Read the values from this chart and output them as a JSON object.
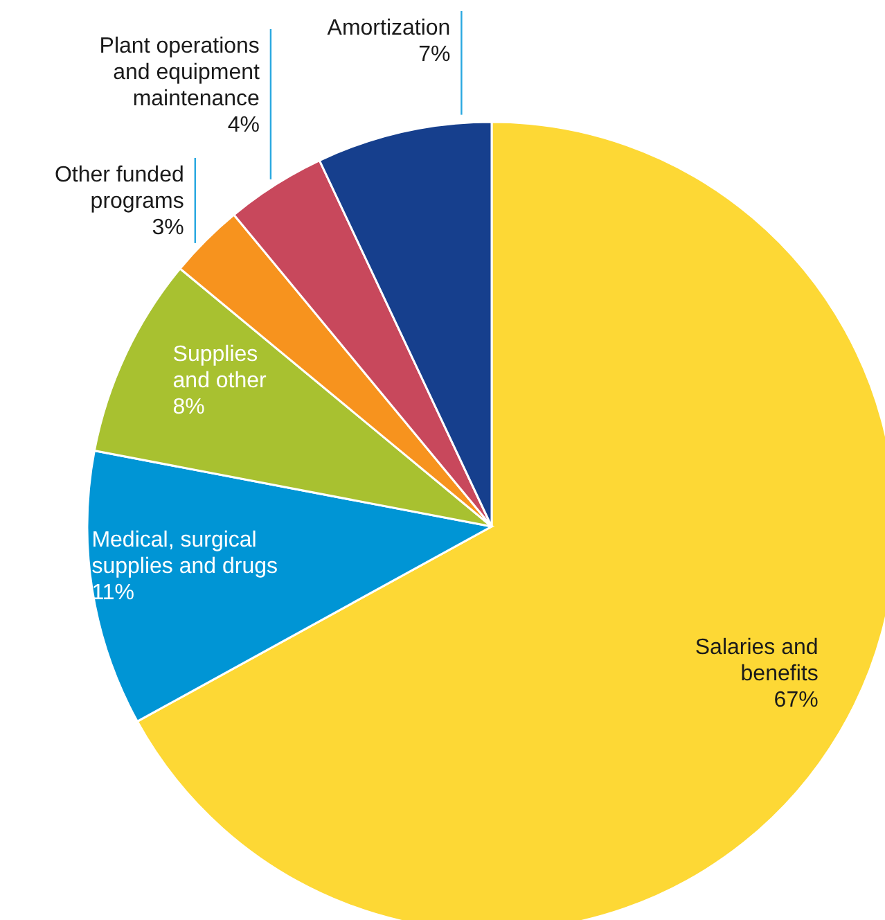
{
  "chart_data": {
    "type": "pie",
    "categories": [
      "Salaries and benefits",
      "Medical, surgical supplies and drugs",
      "Supplies and other",
      "Other funded programs",
      "Plant operations and equipment maintenance",
      "Amortization"
    ],
    "values": [
      67,
      11,
      8,
      3,
      4,
      7
    ],
    "value_labels": [
      "67%",
      "11%",
      "8%",
      "3%",
      "4%",
      "7%"
    ],
    "colors": [
      "#fdd835",
      "#0095d5",
      "#a8c130",
      "#f7931e",
      "#c8485c",
      "#163f8d"
    ]
  }
}
